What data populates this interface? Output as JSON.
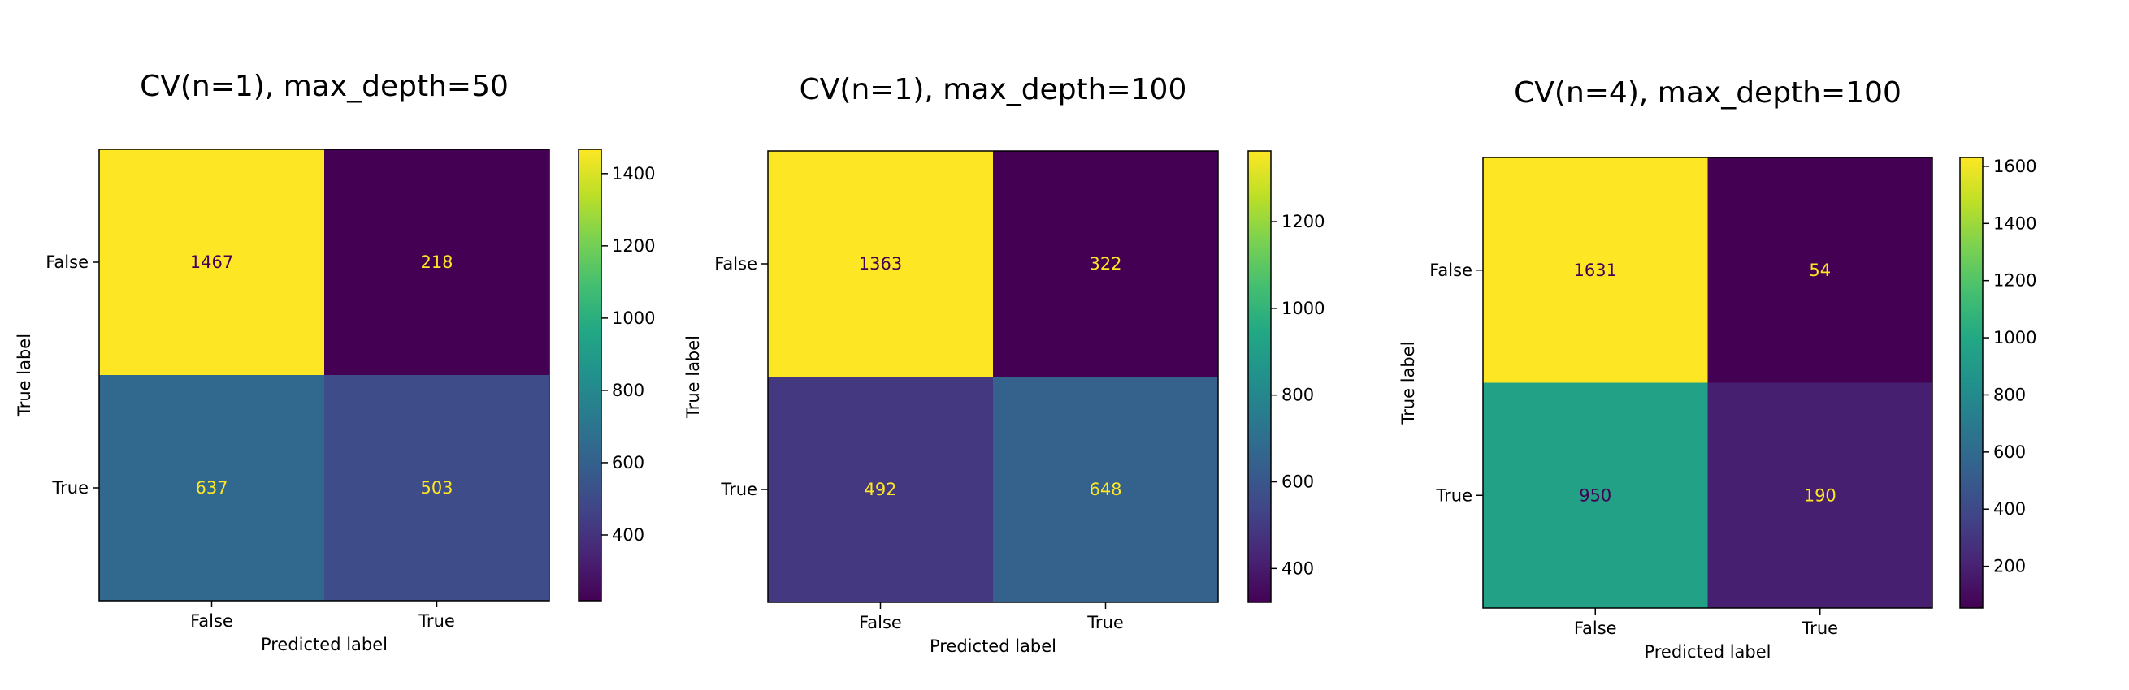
{
  "chart_data": [
    {
      "type": "heatmap",
      "title": "CV(n=1), max_depth=50",
      "xlabel": "Predicted label",
      "ylabel": "True label",
      "x_tick_labels": [
        "False",
        "True"
      ],
      "y_tick_labels": [
        "False",
        "True"
      ],
      "values": [
        [
          1467,
          218
        ],
        [
          637,
          503
        ]
      ],
      "colormap": "viridis",
      "colorbar": {
        "ticks": [
          "400",
          "600",
          "800",
          "1000",
          "1200",
          "1400"
        ]
      }
    },
    {
      "type": "heatmap",
      "title": "CV(n=1), max_depth=100",
      "xlabel": "Predicted label",
      "ylabel": "True label",
      "x_tick_labels": [
        "False",
        "True"
      ],
      "y_tick_labels": [
        "False",
        "True"
      ],
      "values": [
        [
          1363,
          322
        ],
        [
          492,
          648
        ]
      ],
      "colormap": "viridis",
      "colorbar": {
        "ticks": [
          "400",
          "600",
          "800",
          "1000",
          "1200"
        ]
      }
    },
    {
      "type": "heatmap",
      "title": "CV(n=4), max_depth=100",
      "xlabel": "Predicted label",
      "ylabel": "True label",
      "x_tick_labels": [
        "False",
        "True"
      ],
      "y_tick_labels": [
        "False",
        "True"
      ],
      "values": [
        [
          1631,
          54
        ],
        [
          950,
          190
        ]
      ],
      "colormap": "viridis",
      "colorbar": {
        "ticks": [
          "200",
          "400",
          "600",
          "800",
          "1000",
          "1200",
          "1400",
          "1600"
        ]
      }
    }
  ]
}
